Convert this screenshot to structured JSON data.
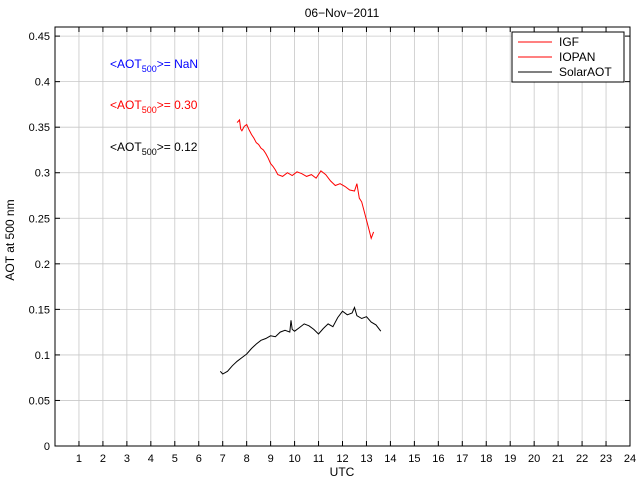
{
  "chart_data": {
    "type": "line",
    "title": "06−Nov−2011",
    "xlabel": "UTC",
    "ylabel": "AOT at 500 nm",
    "xlim": [
      0,
      24
    ],
    "ylim": [
      0,
      0.46
    ],
    "xticks": [
      1,
      2,
      3,
      4,
      5,
      6,
      7,
      8,
      9,
      10,
      11,
      12,
      13,
      14,
      15,
      16,
      17,
      18,
      19,
      20,
      21,
      22,
      23,
      24
    ],
    "yticks": [
      0,
      0.05,
      0.1,
      0.15,
      0.2,
      0.25,
      0.3,
      0.35,
      0.4,
      0.45
    ],
    "ytick_labels": [
      "0",
      "0.05",
      "0.1",
      "0.15",
      "0.2",
      "0.25",
      "0.3",
      "0.35",
      "0.4",
      "0.45"
    ],
    "grid": true,
    "legend_position": "top-right",
    "series": [
      {
        "name": "IGF",
        "color": "#ff0000",
        "x": [],
        "y": []
      },
      {
        "name": "IOPAN",
        "color": "#ff0000",
        "x": [
          7.6,
          7.7,
          7.75,
          7.8,
          7.9,
          8.0,
          8.1,
          8.2,
          8.3,
          8.4,
          8.5,
          8.6,
          8.7,
          8.8,
          8.9,
          9.0,
          9.1,
          9.2,
          9.3,
          9.5,
          9.7,
          9.9,
          10.1,
          10.3,
          10.5,
          10.7,
          10.9,
          11.1,
          11.3,
          11.5,
          11.7,
          11.9,
          12.1,
          12.3,
          12.5,
          12.6,
          12.7,
          12.8,
          12.9,
          13.0,
          13.1,
          13.2,
          13.3
        ],
        "y": [
          0.355,
          0.358,
          0.348,
          0.346,
          0.351,
          0.353,
          0.347,
          0.342,
          0.338,
          0.333,
          0.331,
          0.327,
          0.325,
          0.321,
          0.316,
          0.31,
          0.307,
          0.303,
          0.298,
          0.296,
          0.3,
          0.297,
          0.301,
          0.299,
          0.296,
          0.298,
          0.294,
          0.302,
          0.298,
          0.291,
          0.286,
          0.288,
          0.285,
          0.281,
          0.28,
          0.288,
          0.272,
          0.268,
          0.258,
          0.248,
          0.238,
          0.228,
          0.235
        ]
      },
      {
        "name": "SolarAOT",
        "color": "#000000",
        "x": [
          6.9,
          7.0,
          7.2,
          7.4,
          7.6,
          7.8,
          8.0,
          8.2,
          8.4,
          8.6,
          8.8,
          9.0,
          9.2,
          9.4,
          9.6,
          9.8,
          9.85,
          9.9,
          10.0,
          10.2,
          10.4,
          10.6,
          10.8,
          11.0,
          11.2,
          11.4,
          11.6,
          11.8,
          12.0,
          12.2,
          12.4,
          12.5,
          12.6,
          12.8,
          13.0,
          13.2,
          13.4,
          13.6
        ],
        "y": [
          0.082,
          0.079,
          0.082,
          0.088,
          0.093,
          0.097,
          0.101,
          0.107,
          0.112,
          0.116,
          0.118,
          0.121,
          0.12,
          0.125,
          0.127,
          0.125,
          0.138,
          0.128,
          0.126,
          0.13,
          0.134,
          0.132,
          0.128,
          0.123,
          0.129,
          0.134,
          0.131,
          0.141,
          0.148,
          0.144,
          0.146,
          0.152,
          0.143,
          0.14,
          0.142,
          0.136,
          0.133,
          0.126
        ]
      }
    ],
    "annotations": [
      {
        "prefix": "<AOT",
        "sub": "500",
        "suffix": ">=  NaN",
        "color": "#0000ff"
      },
      {
        "prefix": "<AOT",
        "sub": "500",
        "suffix": ">= 0.30",
        "color": "#ff0000"
      },
      {
        "prefix": "<AOT",
        "sub": "500",
        "suffix": ">= 0.12",
        "color": "#000000"
      }
    ]
  }
}
